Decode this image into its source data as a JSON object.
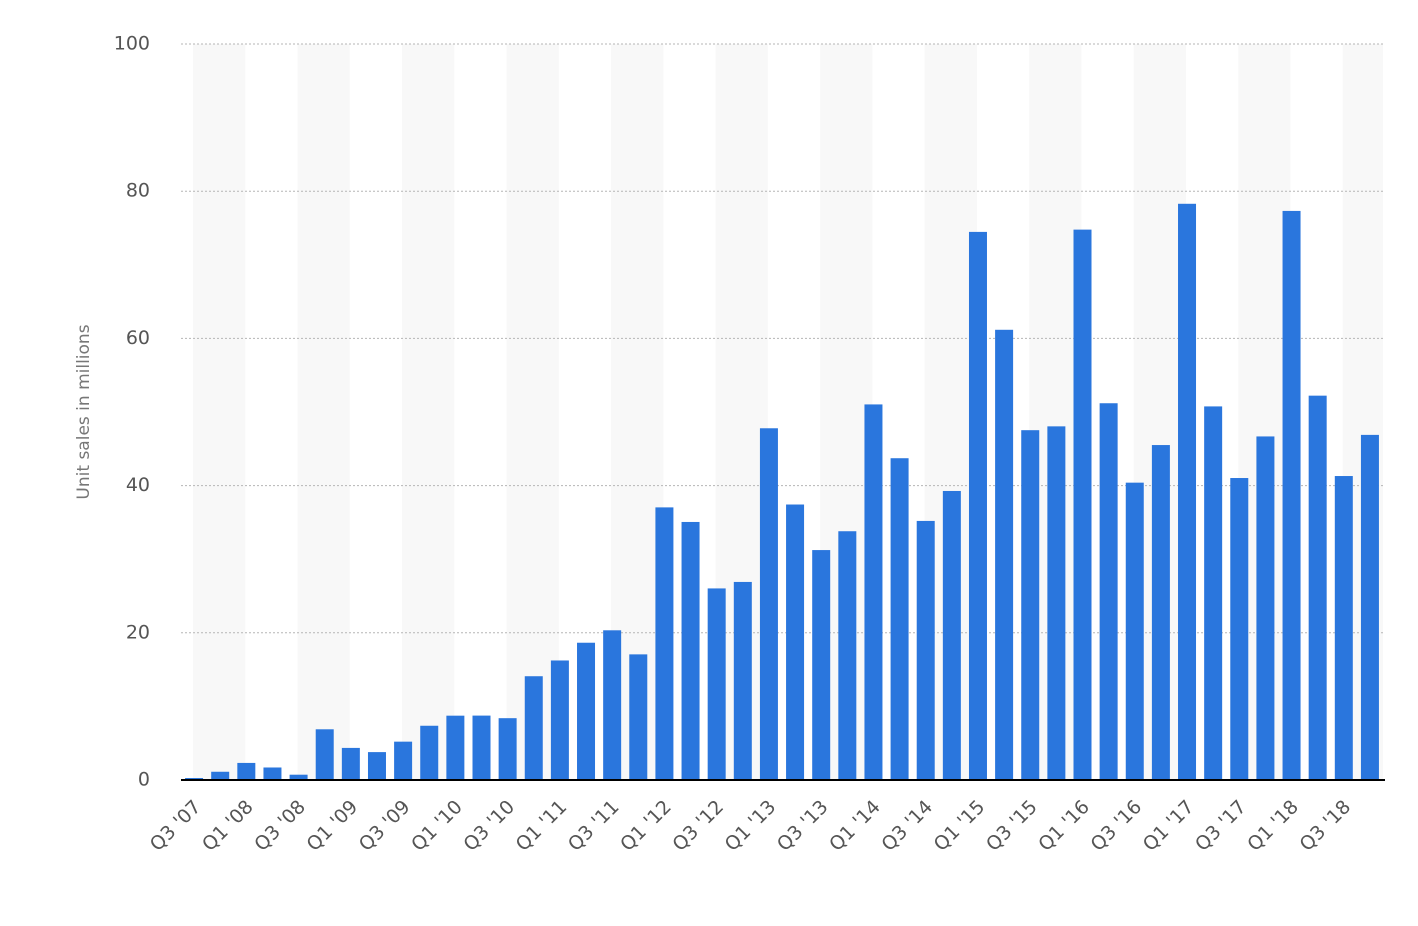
{
  "chart_data": {
    "type": "bar",
    "y_axis_label": "Unit sales in millions",
    "categories": [
      "Q3 '07",
      null,
      "Q1 '08",
      null,
      "Q3 '08",
      null,
      "Q1 '09",
      null,
      "Q3 '09",
      null,
      "Q1 '10",
      null,
      "Q3 '10",
      null,
      "Q1 '11",
      null,
      "Q3 '11",
      null,
      "Q1 '12",
      null,
      "Q3 '12",
      null,
      "Q1 '13",
      null,
      "Q3 '13",
      null,
      "Q1 '14",
      null,
      "Q3 '14",
      null,
      "Q1 '15",
      null,
      "Q3 '15",
      null,
      "Q1 '16",
      null,
      "Q3 '16",
      null,
      "Q1 '17",
      null,
      "Q3 '17",
      null,
      "Q1 '18",
      null,
      "Q3 '18",
      null
    ],
    "values": [
      0.27,
      1.12,
      2.32,
      1.7,
      0.72,
      6.89,
      4.36,
      3.79,
      5.21,
      7.37,
      8.74,
      8.75,
      8.4,
      14.1,
      16.24,
      18.65,
      20.34,
      17.07,
      37.04,
      35.06,
      26.03,
      26.91,
      47.79,
      37.43,
      31.24,
      33.8,
      51.03,
      43.72,
      35.2,
      39.27,
      74.47,
      61.17,
      47.53,
      48.05,
      74.78,
      51.19,
      40.4,
      45.51,
      78.29,
      50.76,
      41.03,
      46.68,
      77.32,
      52.22,
      41.3,
      46.89
    ],
    "color": "#2a76dd",
    "ylim": [
      0,
      100
    ],
    "yticks": [
      0,
      20,
      40,
      60,
      80,
      100
    ],
    "grid": true
  }
}
